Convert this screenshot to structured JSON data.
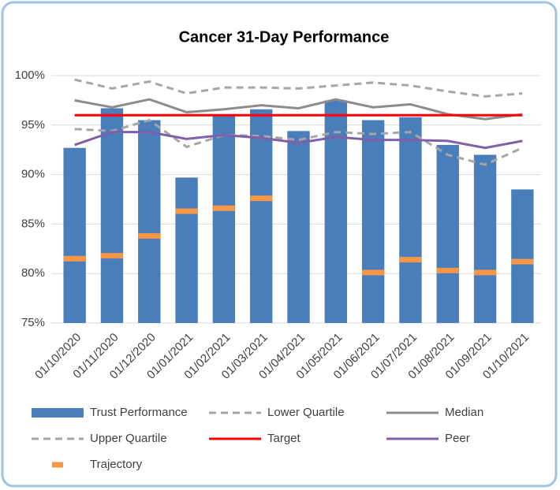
{
  "chart_data": {
    "type": "combo",
    "title": "Cancer 31-Day Performance",
    "categories": [
      "01/10/2020",
      "01/11/2020",
      "01/12/2020",
      "01/01/2021",
      "01/02/2021",
      "01/03/2021",
      "01/04/2021",
      "01/05/2021",
      "01/06/2021",
      "01/07/2021",
      "01/08/2021",
      "01/09/2021",
      "01/10/2021"
    ],
    "ylim": [
      75,
      100
    ],
    "yticks": [
      {
        "value": 75,
        "label": "75%"
      },
      {
        "value": 80,
        "label": "80%"
      },
      {
        "value": 85,
        "label": "85%"
      },
      {
        "value": 90,
        "label": "90%"
      },
      {
        "value": 95,
        "label": "95%"
      },
      {
        "value": 100,
        "label": "100%"
      }
    ],
    "grid": true,
    "series": [
      {
        "name": "Trust Performance",
        "type": "bar",
        "color": "#4a7ebb",
        "values": [
          92.7,
          96.7,
          95.5,
          89.7,
          96.0,
          96.6,
          94.4,
          97.5,
          95.5,
          95.8,
          93.0,
          92.0,
          88.5
        ]
      },
      {
        "name": "Lower Quartile",
        "type": "line",
        "dash": true,
        "color": "#a6a6a6",
        "values": [
          94.6,
          94.4,
          95.5,
          92.8,
          94.0,
          93.9,
          93.5,
          94.3,
          94.1,
          94.3,
          92.0,
          91.0,
          92.7
        ]
      },
      {
        "name": "Median",
        "type": "line",
        "dash": false,
        "color": "#8c8c8c",
        "values": [
          97.5,
          96.8,
          97.6,
          96.3,
          96.6,
          97.0,
          96.7,
          97.6,
          96.8,
          97.1,
          96.1,
          95.6,
          96.1
        ]
      },
      {
        "name": "Upper Quartile",
        "type": "line",
        "dash": true,
        "color": "#a6a6a6",
        "values": [
          99.6,
          98.7,
          99.4,
          98.2,
          98.8,
          98.8,
          98.7,
          99.0,
          99.3,
          99.0,
          98.4,
          97.9,
          98.2
        ]
      },
      {
        "name": "Target",
        "type": "line",
        "dash": false,
        "color": "#ff0000",
        "values": [
          96,
          96,
          96,
          96,
          96,
          96,
          96,
          96,
          96,
          96,
          96,
          96,
          96
        ]
      },
      {
        "name": "Peer",
        "type": "line",
        "dash": false,
        "color": "#7f5fa9",
        "values": [
          93.0,
          94.3,
          94.3,
          93.6,
          94.0,
          93.7,
          93.2,
          93.8,
          93.5,
          93.5,
          93.4,
          92.7,
          93.4
        ]
      },
      {
        "name": "Trajectory",
        "type": "marker",
        "color": "#f79646",
        "values": [
          81.5,
          81.8,
          83.8,
          86.3,
          86.6,
          87.6,
          null,
          null,
          80.1,
          81.4,
          80.3,
          80.1,
          81.2
        ]
      }
    ]
  }
}
